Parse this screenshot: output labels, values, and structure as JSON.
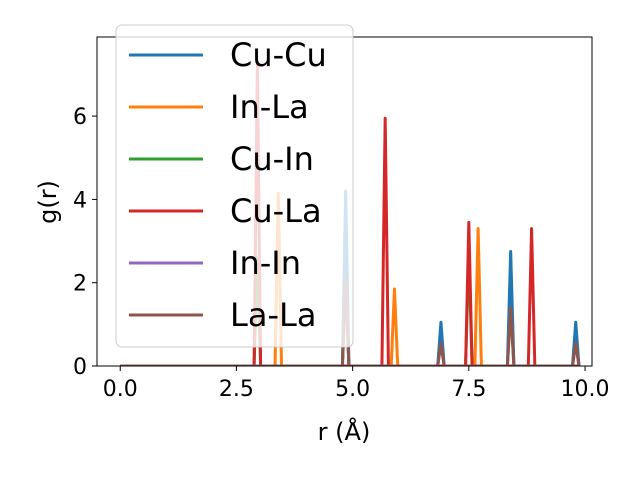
{
  "chart_data": {
    "type": "line",
    "xlabel": "r (Å)",
    "ylabel": "g(r)",
    "xlim": [
      -0.5,
      10.15
    ],
    "ylim": [
      0,
      7.9
    ],
    "xticks": [
      "0.0",
      "2.5",
      "5.0",
      "7.5",
      "10.0"
    ],
    "xtick_values": [
      0,
      2.5,
      5,
      7.5,
      10
    ],
    "yticks": [
      "0",
      "2",
      "4",
      "6"
    ],
    "ytick_values": [
      0,
      2,
      4,
      6
    ],
    "peak_half_width": 0.07,
    "x_range": [
      0,
      9.8
    ],
    "legend_position": "upper-left",
    "series": [
      {
        "name": "Cu-Cu",
        "color": "#1f77b4",
        "peaks": [
          [
            4.85,
            4.2
          ],
          [
            6.9,
            1.05
          ],
          [
            8.4,
            2.75
          ],
          [
            9.8,
            1.05
          ]
        ]
      },
      {
        "name": "In-La",
        "color": "#ff7f0e",
        "peaks": [
          [
            3.4,
            4.15
          ],
          [
            5.9,
            1.85
          ],
          [
            7.7,
            3.3
          ]
        ]
      },
      {
        "name": "Cu-In",
        "color": "#2ca02c",
        "peaks": [
          [
            2.95,
            2.6
          ],
          [
            4.85,
            2.05
          ],
          [
            7.5,
            2.75
          ]
        ]
      },
      {
        "name": "Cu-La",
        "color": "#d62728",
        "peaks": [
          [
            2.95,
            7.3
          ],
          [
            5.7,
            5.95
          ],
          [
            7.5,
            3.45
          ],
          [
            8.85,
            3.3
          ]
        ]
      },
      {
        "name": "In-In",
        "color": "#9467bd",
        "peaks": [
          [
            4.85,
            2.1
          ],
          [
            6.9,
            0.55
          ],
          [
            8.4,
            1.4
          ],
          [
            9.8,
            0.55
          ]
        ]
      },
      {
        "name": "La-La",
        "color": "#8c564b",
        "peaks": [
          [
            4.85,
            2.1
          ],
          [
            6.9,
            0.55
          ],
          [
            8.4,
            1.4
          ],
          [
            9.8,
            0.55
          ]
        ]
      }
    ]
  }
}
